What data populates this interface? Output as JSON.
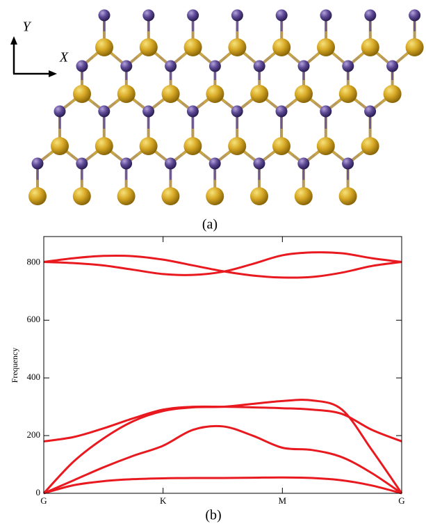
{
  "panel_a": {
    "label": "(a)",
    "axis_y": "Y",
    "axis_x": "X"
  },
  "panel_b_label": "(b)",
  "chart_data": {
    "type": "line",
    "ylabel": "Frequency",
    "x": [
      0,
      0.25,
      0.5,
      0.75,
      1,
      1.25,
      1.5,
      1.75,
      2,
      2.25,
      2.5,
      2.75,
      3
    ],
    "xlim": [
      0,
      3
    ],
    "xticks": [
      {
        "value": 0,
        "label": "G"
      },
      {
        "value": 1,
        "label": "K"
      },
      {
        "value": 2,
        "label": "M"
      },
      {
        "value": 3,
        "label": "G"
      }
    ],
    "ylim": [
      0,
      890
    ],
    "yticks": [
      0,
      200,
      400,
      600,
      800
    ],
    "series": [
      {
        "color": "#e8191f",
        "values": [
          0,
          28,
          42,
          49,
          52,
          53,
          53,
          54,
          55,
          53,
          45,
          27,
          0
        ]
      },
      {
        "color": "#e8191f",
        "values": [
          0,
          45,
          90,
          130,
          165,
          220,
          232,
          200,
          158,
          150,
          125,
          70,
          0
        ]
      },
      {
        "color": "#e8191f",
        "values": [
          0,
          110,
          190,
          250,
          285,
          298,
          300,
          310,
          320,
          322,
          290,
          150,
          0
        ]
      },
      {
        "color": "#e8191f",
        "values": [
          180,
          195,
          225,
          260,
          290,
          300,
          300,
          298,
          295,
          290,
          275,
          220,
          180
        ]
      },
      {
        "color": "#e8191f",
        "values": [
          802,
          815,
          823,
          822,
          810,
          790,
          770,
          755,
          748,
          750,
          765,
          788,
          802
        ]
      },
      {
        "color": "#e8191f",
        "values": [
          802,
          798,
          790,
          775,
          760,
          757,
          768,
          795,
          825,
          835,
          832,
          815,
          802
        ]
      }
    ]
  }
}
